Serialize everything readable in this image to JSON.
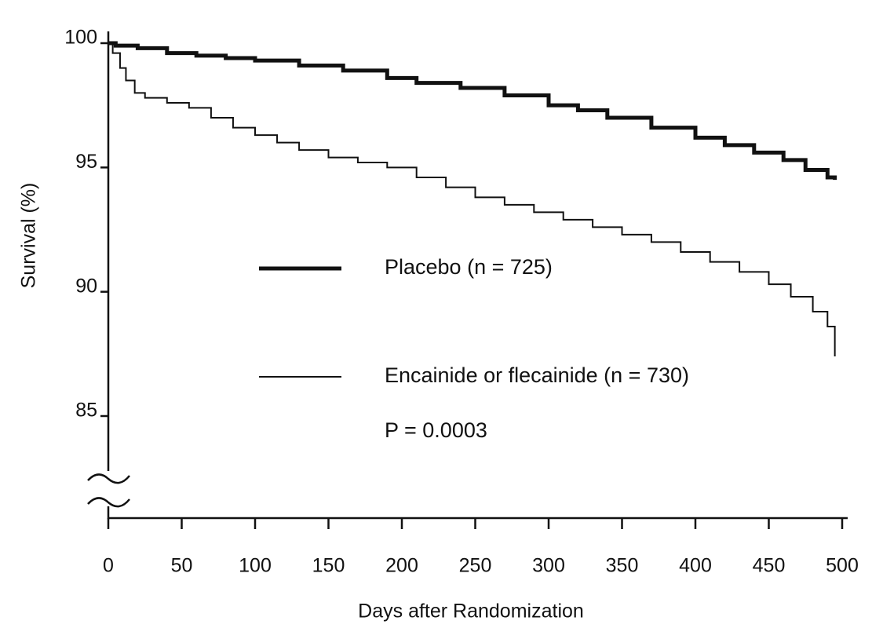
{
  "chart_data": {
    "type": "step",
    "x_label": "Days after Randomization",
    "y_label": "Survival (%)",
    "annotation": "P = 0.0003",
    "xlim": [
      0,
      500
    ],
    "xticks": [
      0,
      50,
      100,
      150,
      200,
      250,
      300,
      350,
      400,
      450,
      500
    ],
    "ylim": [
      85,
      100
    ],
    "yticks": [
      85,
      90,
      95,
      100
    ],
    "series": [
      {
        "name": "Placebo (n = 725)",
        "color": "#111111",
        "width": 5,
        "x": [
          0,
          5,
          20,
          40,
          60,
          80,
          100,
          130,
          160,
          190,
          210,
          240,
          270,
          300,
          320,
          340,
          370,
          400,
          420,
          440,
          460,
          475,
          490,
          495
        ],
        "values": [
          100,
          99.9,
          99.8,
          99.6,
          99.5,
          99.4,
          99.3,
          99.1,
          98.9,
          98.6,
          98.4,
          98.2,
          97.9,
          97.5,
          97.3,
          97.0,
          96.6,
          96.2,
          95.9,
          95.6,
          95.3,
          94.9,
          94.6,
          94.5
        ]
      },
      {
        "name": "Encainide or flecainide (n = 730)",
        "color": "#111111",
        "width": 2,
        "x": [
          0,
          3,
          8,
          12,
          18,
          25,
          40,
          55,
          70,
          85,
          100,
          115,
          130,
          150,
          170,
          190,
          210,
          230,
          250,
          270,
          290,
          310,
          330,
          350,
          370,
          390,
          410,
          430,
          450,
          465,
          480,
          490,
          495
        ],
        "values": [
          100,
          99.6,
          99.0,
          98.5,
          98.0,
          97.8,
          97.6,
          97.4,
          97.0,
          96.6,
          96.3,
          96.0,
          95.7,
          95.4,
          95.2,
          95.0,
          94.6,
          94.2,
          93.8,
          93.5,
          93.2,
          92.9,
          92.6,
          92.3,
          92.0,
          91.6,
          91.2,
          90.8,
          90.3,
          89.8,
          89.2,
          88.6,
          87.4
        ]
      }
    ]
  }
}
